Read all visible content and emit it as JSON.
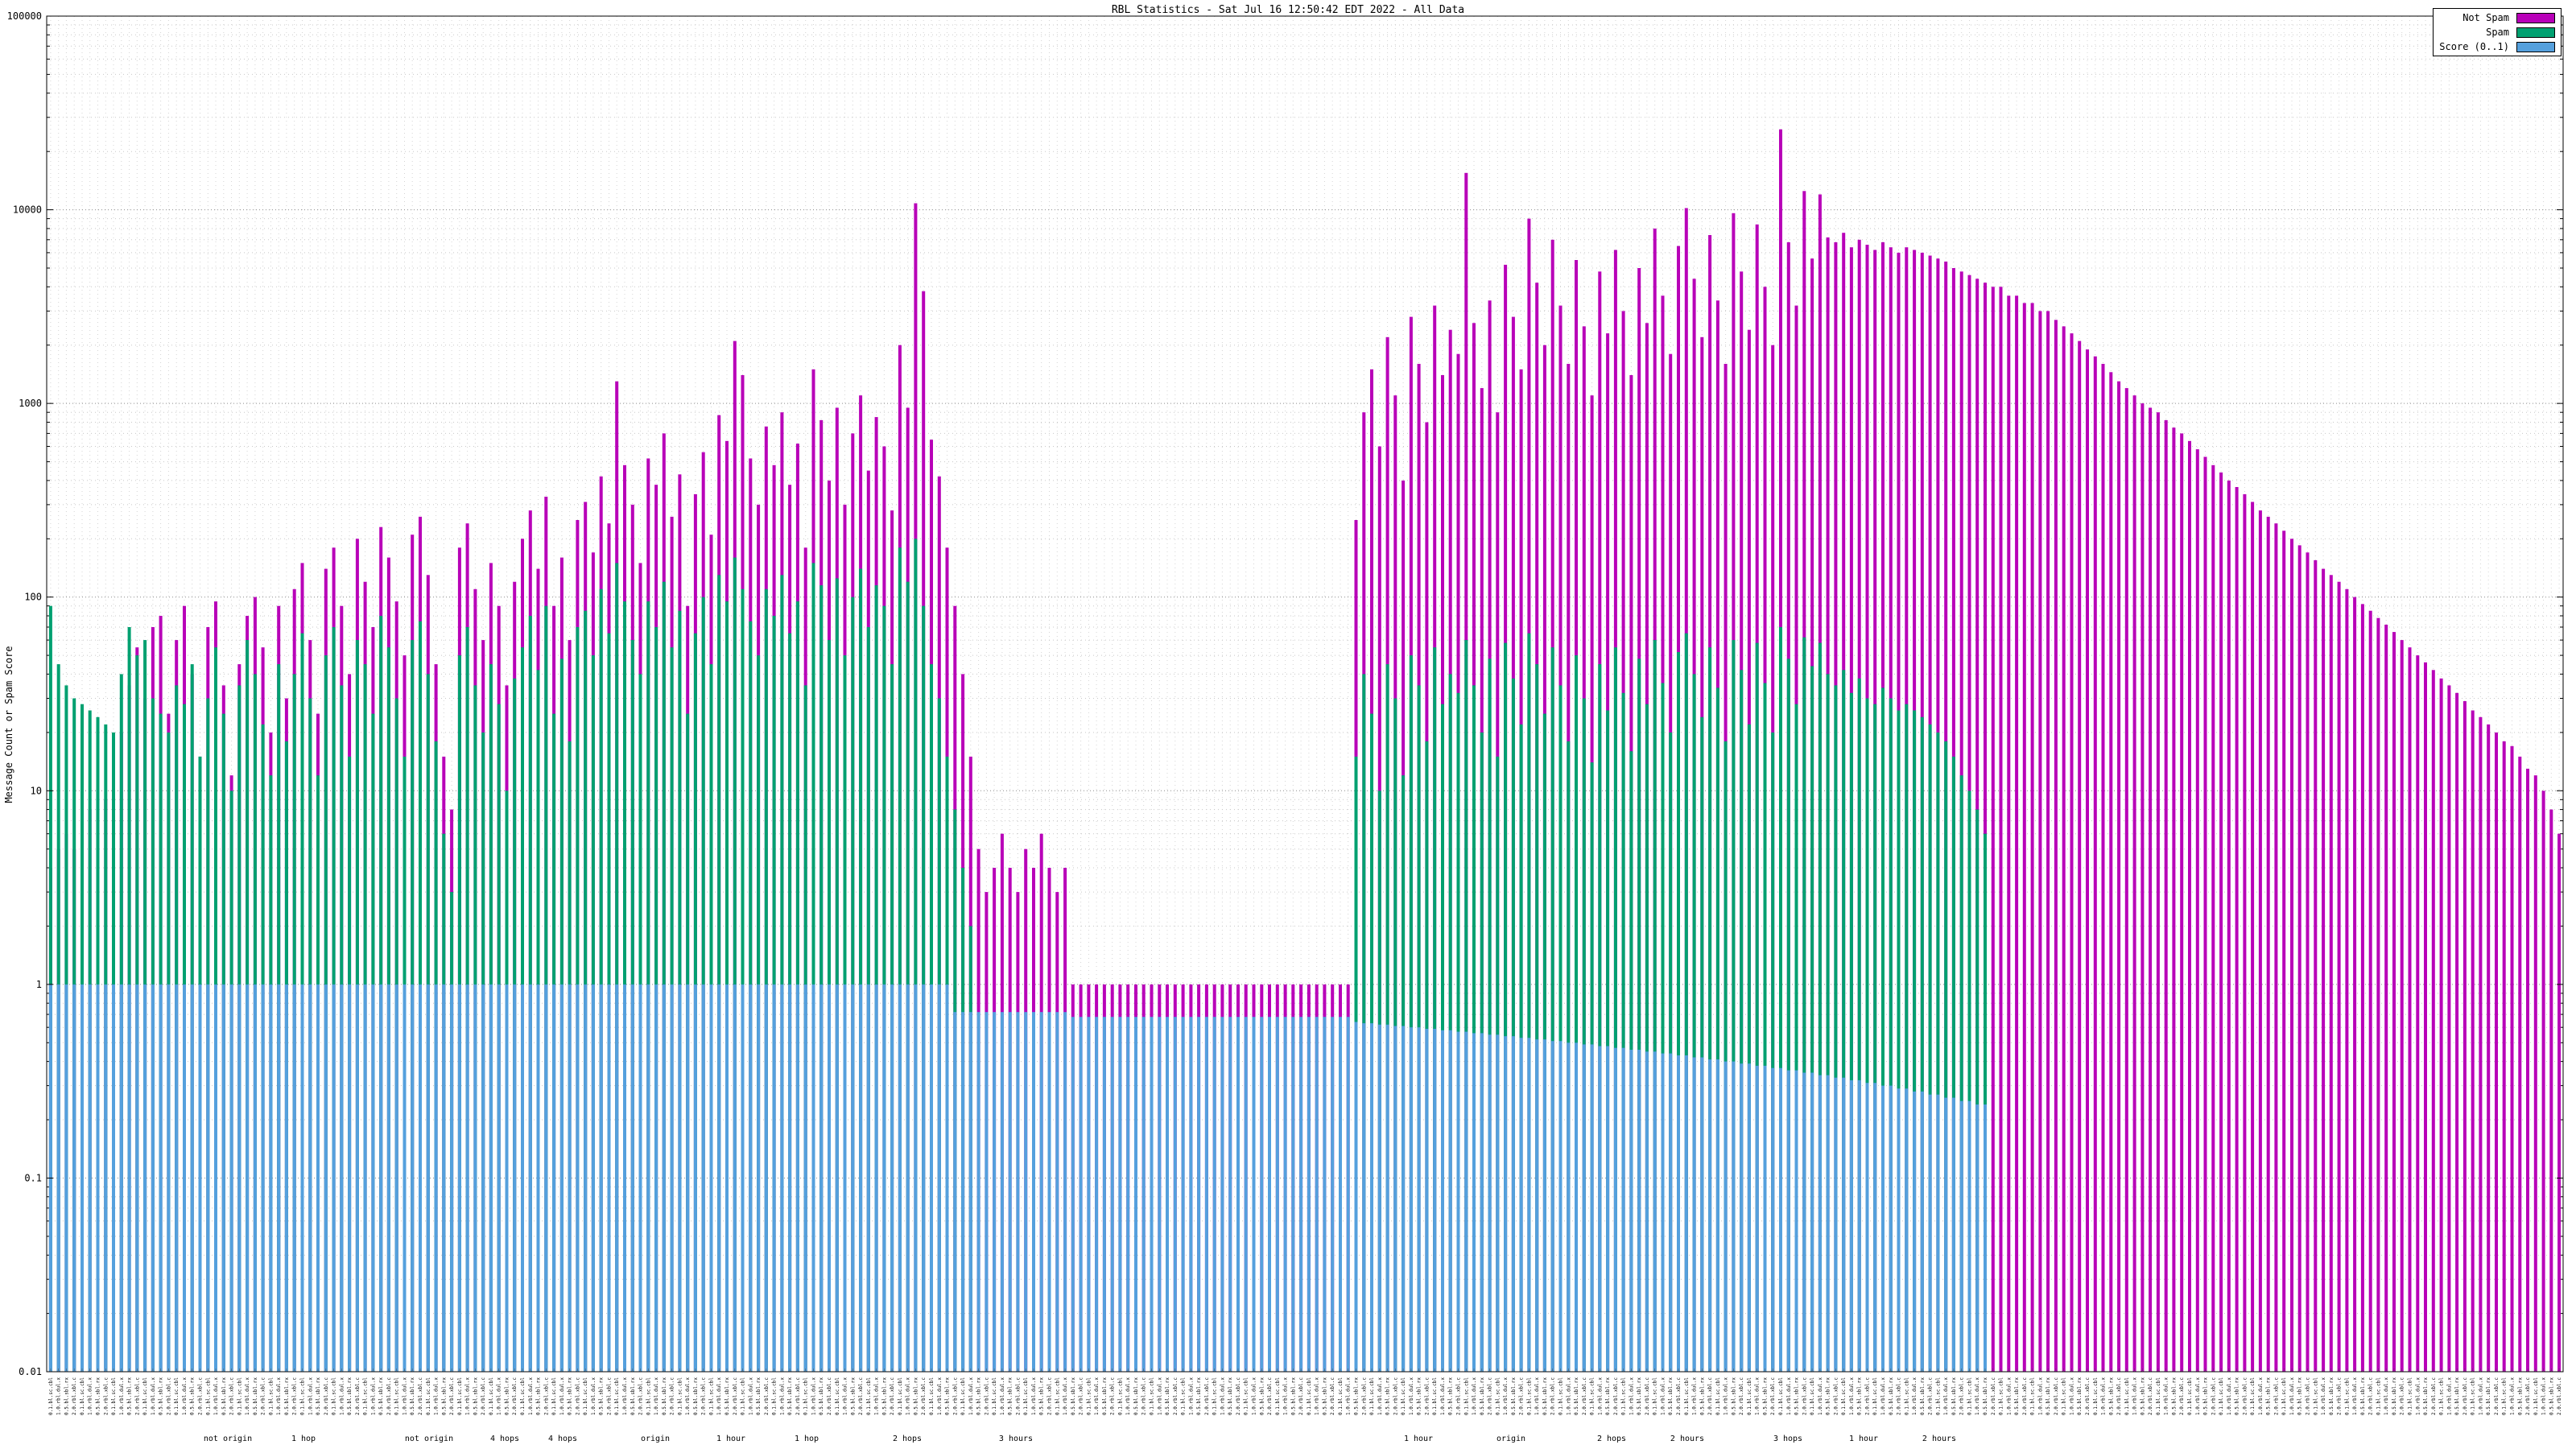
{
  "title": "RBL Statistics - Sat Jul 16 12:50:42 EDT 2022 - All Data",
  "y_axis": {
    "label": "Message Count or Spam Score",
    "scale": "log",
    "ticks": [
      "100000",
      "10000",
      "1000",
      "100",
      "10",
      "1",
      "0.1",
      "0.01"
    ]
  },
  "x_axis": {
    "note": "per-bar rule labels are rendered vertically and are illegible at source resolution",
    "tick_texts": [
      "0.1.bl.sc.cbl",
      "1.0.rbl.dul.x",
      "0.5.bl.sbl.rx",
      "2.0.rbl.xbl.c"
    ],
    "group_labels": [
      {
        "pos": 0.072,
        "text": "not origin"
      },
      {
        "pos": 0.102,
        "text": "1 hop"
      },
      {
        "pos": 0.152,
        "text": "not origin"
      },
      {
        "pos": 0.182,
        "text": "4 hops"
      },
      {
        "pos": 0.205,
        "text": "4 hops"
      },
      {
        "pos": 0.242,
        "text": "origin"
      },
      {
        "pos": 0.272,
        "text": "1 hour"
      },
      {
        "pos": 0.302,
        "text": "1 hop"
      },
      {
        "pos": 0.342,
        "text": "2 hops"
      },
      {
        "pos": 0.385,
        "text": "3 hours"
      },
      {
        "pos": 0.545,
        "text": "1 hour"
      },
      {
        "pos": 0.582,
        "text": "origin"
      },
      {
        "pos": 0.622,
        "text": "2 hops"
      },
      {
        "pos": 0.652,
        "text": "2 hours"
      },
      {
        "pos": 0.692,
        "text": "3 hops"
      },
      {
        "pos": 0.722,
        "text": "1 hour"
      },
      {
        "pos": 0.752,
        "text": "2 hours"
      }
    ]
  },
  "chart_data": {
    "type": "bar",
    "title": "RBL Statistics - Sat Jul 16 12:50:42 EDT 2022 - All Data",
    "xlabel": "",
    "ylabel": "Message Count or Spam Score",
    "ylim": [
      0.01,
      100000
    ],
    "yscale": "log",
    "grid": true,
    "legend_position": "top-right",
    "note": "approx. 320 impulse bars estimated from pixels; individual x labels illegible",
    "series": [
      {
        "name": "Not Spam",
        "color": "#b800b8",
        "values": [
          4,
          5,
          6,
          5,
          7,
          8,
          10,
          9,
          12,
          20,
          35,
          55,
          30,
          70,
          80,
          25,
          60,
          90,
          40,
          15,
          70,
          95,
          35,
          12,
          45,
          80,
          100,
          55,
          20,
          90,
          30,
          110,
          150,
          60,
          25,
          140,
          180,
          90,
          40,
          200,
          120,
          70,
          230,
          160,
          95,
          50,
          210,
          260,
          130,
          45,
          15,
          8,
          180,
          240,
          110,
          60,
          150,
          90,
          35,
          120,
          200,
          280,
          140,
          330,
          90,
          160,
          60,
          250,
          310,
          170,
          420,
          240,
          1300,
          480,
          300,
          150,
          520,
          380,
          700,
          260,
          430,
          90,
          340,
          560,
          210,
          870,
          640,
          2100,
          1400,
          520,
          300,
          760,
          480,
          900,
          380,
          620,
          180,
          1500,
          820,
          400,
          950,
          300,
          700,
          1100,
          450,
          850,
          600,
          280,
          2000,
          950,
          10800,
          3800,
          650,
          420,
          180,
          90,
          40,
          15,
          5,
          3,
          4,
          6,
          4,
          3,
          5,
          4,
          6,
          4,
          3,
          4,
          1,
          1,
          1,
          1,
          1,
          1,
          1,
          1,
          1,
          1,
          1,
          1,
          1,
          1,
          1,
          1,
          1,
          1,
          1,
          1,
          1,
          1,
          1,
          1,
          1,
          1,
          1,
          1,
          1,
          1,
          1,
          1,
          1,
          1,
          1,
          1,
          250,
          900,
          1500,
          600,
          2200,
          1100,
          400,
          2800,
          1600,
          800,
          3200,
          1400,
          2400,
          1800,
          15500,
          2600,
          1200,
          3400,
          900,
          5200,
          2800,
          1500,
          9000,
          4200,
          2000,
          7000,
          3200,
          1600,
          5500,
          2500,
          1100,
          4800,
          2300,
          6200,
          3000,
          1400,
          5000,
          2600,
          8000,
          3600,
          1800,
          6500,
          10200,
          4400,
          2200,
          7400,
          3400,
          1600,
          9600,
          4800,
          2400,
          8400,
          4000,
          2000,
          26000,
          6800,
          3200,
          12500,
          5600,
          12000,
          7200,
          6800,
          7600,
          6400,
          7000,
          6600,
          6200,
          6800,
          6400,
          6000,
          6400,
          6200,
          6000,
          5800,
          5600,
          5400,
          5000,
          4800,
          4600,
          4400,
          4200,
          4000,
          4000,
          3600,
          3600,
          3300,
          3300,
          3000,
          3000,
          2700,
          2500,
          2300,
          2100,
          1900,
          1750,
          1600,
          1450,
          1300,
          1200,
          1100,
          1000,
          950,
          900,
          820,
          750,
          700,
          640,
          580,
          530,
          480,
          440,
          400,
          370,
          340,
          310,
          280,
          260,
          240,
          220,
          200,
          185,
          170,
          155,
          140,
          130,
          120,
          110,
          100,
          92,
          85,
          78,
          72,
          66,
          60,
          55,
          50,
          46,
          42,
          38,
          35,
          32,
          29,
          26,
          24,
          22,
          20,
          18,
          17,
          15,
          13,
          12,
          10,
          8,
          6
        ]
      },
      {
        "name": "Spam",
        "color": "#00a070",
        "values": [
          90,
          45,
          35,
          30,
          28,
          26,
          24,
          22,
          20,
          40,
          70,
          50,
          60,
          30,
          25,
          20,
          35,
          28,
          45,
          15,
          30,
          55,
          25,
          10,
          35,
          60,
          40,
          22,
          12,
          45,
          18,
          40,
          65,
          30,
          12,
          50,
          70,
          35,
          15,
          60,
          45,
          25,
          80,
          55,
          30,
          15,
          60,
          75,
          40,
          18,
          6,
          3,
          50,
          70,
          35,
          20,
          45,
          28,
          10,
          38,
          55,
          80,
          42,
          90,
          25,
          48,
          18,
          70,
          85,
          50,
          110,
          65,
          150,
          95,
          60,
          40,
          95,
          70,
          120,
          55,
          85,
          25,
          65,
          100,
          45,
          130,
          95,
          160,
          110,
          75,
          50,
          110,
          80,
          130,
          65,
          95,
          35,
          150,
          115,
          60,
          125,
          50,
          100,
          140,
          70,
          115,
          90,
          45,
          180,
          120,
          200,
          90,
          45,
          30,
          15,
          8,
          4,
          2,
          0,
          0,
          0,
          0,
          0,
          0,
          0,
          0,
          0,
          0,
          0,
          0,
          0,
          0,
          0,
          0,
          0,
          0,
          0,
          0,
          0,
          0,
          0,
          0,
          0,
          0,
          0,
          0,
          0,
          0,
          0,
          0,
          0,
          0,
          0,
          0,
          0,
          0,
          0,
          0,
          0,
          0,
          0,
          0,
          0,
          0,
          0,
          0,
          15,
          40,
          25,
          10,
          45,
          30,
          12,
          50,
          35,
          18,
          55,
          28,
          40,
          32,
          60,
          35,
          20,
          48,
          15,
          58,
          38,
          22,
          65,
          45,
          25,
          55,
          35,
          18,
          50,
          30,
          14,
          45,
          26,
          55,
          32,
          16,
          48,
          28,
          60,
          36,
          20,
          52,
          65,
          40,
          24,
          55,
          34,
          18,
          60,
          42,
          22,
          58,
          36,
          20,
          70,
          48,
          28,
          62,
          44,
          58,
          40,
          35,
          42,
          32,
          38,
          30,
          28,
          34,
          30,
          26,
          28,
          26,
          24,
          22,
          20,
          18,
          15,
          12,
          10,
          8,
          6,
          0,
          0,
          0,
          0,
          0,
          0,
          0,
          0,
          0,
          0,
          0,
          0,
          0,
          0,
          0,
          0,
          0,
          0,
          0,
          0,
          0,
          0,
          0,
          0,
          0,
          0,
          0,
          0,
          0,
          0,
          0,
          0,
          0,
          0,
          0,
          0,
          0,
          0,
          0,
          0,
          0,
          0,
          0,
          0,
          0,
          0,
          0,
          0,
          0,
          0,
          0,
          0,
          0,
          0,
          0,
          0,
          0,
          0,
          0,
          0,
          0,
          0,
          0,
          0,
          0,
          0,
          0,
          0,
          0,
          0,
          0,
          0,
          0
        ]
      },
      {
        "name": "Score (0..1)",
        "color": "#55a0dd",
        "values": [
          1,
          1,
          1,
          1,
          1,
          1,
          1,
          1,
          1,
          1,
          1,
          1,
          1,
          1,
          1,
          1,
          1,
          1,
          1,
          1,
          1,
          1,
          1,
          1,
          1,
          1,
          1,
          1,
          1,
          1,
          1,
          1,
          1,
          1,
          1,
          1,
          1,
          1,
          1,
          1,
          1,
          1,
          1,
          1,
          1,
          1,
          1,
          1,
          1,
          1,
          1,
          1,
          1,
          1,
          1,
          1,
          1,
          1,
          1,
          1,
          1,
          1,
          1,
          1,
          1,
          1,
          1,
          1,
          1,
          1,
          1,
          1,
          1,
          1,
          1,
          1,
          1,
          1,
          1,
          1,
          1,
          1,
          1,
          1,
          1,
          1,
          1,
          1,
          1,
          1,
          1,
          1,
          1,
          1,
          1,
          1,
          1,
          1,
          1,
          1,
          1,
          1,
          1,
          1,
          1,
          1,
          1,
          1,
          1,
          1,
          1,
          1,
          1,
          1,
          1,
          0.72,
          0.72,
          0.72,
          0.72,
          0.72,
          0.72,
          0.72,
          0.72,
          0.72,
          0.72,
          0.72,
          0.72,
          0.72,
          0.72,
          0.72,
          0.68,
          0.68,
          0.68,
          0.68,
          0.68,
          0.68,
          0.68,
          0.68,
          0.68,
          0.68,
          0.68,
          0.68,
          0.68,
          0.68,
          0.68,
          0.68,
          0.68,
          0.68,
          0.68,
          0.68,
          0.68,
          0.68,
          0.68,
          0.68,
          0.68,
          0.68,
          0.68,
          0.68,
          0.68,
          0.68,
          0.68,
          0.68,
          0.68,
          0.68,
          0.68,
          0.68,
          0.64,
          0.63,
          0.63,
          0.62,
          0.62,
          0.61,
          0.61,
          0.6,
          0.6,
          0.59,
          0.59,
          0.58,
          0.58,
          0.57,
          0.57,
          0.56,
          0.56,
          0.55,
          0.55,
          0.54,
          0.54,
          0.53,
          0.53,
          0.52,
          0.52,
          0.51,
          0.51,
          0.5,
          0.5,
          0.49,
          0.49,
          0.48,
          0.48,
          0.47,
          0.47,
          0.46,
          0.46,
          0.45,
          0.45,
          0.44,
          0.44,
          0.43,
          0.43,
          0.42,
          0.42,
          0.41,
          0.41,
          0.4,
          0.4,
          0.39,
          0.39,
          0.38,
          0.38,
          0.37,
          0.37,
          0.36,
          0.36,
          0.35,
          0.35,
          0.34,
          0.34,
          0.33,
          0.33,
          0.32,
          0.32,
          0.31,
          0.31,
          0.3,
          0.3,
          0.29,
          0.29,
          0.28,
          0.28,
          0.27,
          0.27,
          0.26,
          0.26,
          0.25,
          0.25,
          0.24,
          0.24,
          0,
          0,
          0,
          0,
          0,
          0,
          0,
          0,
          0,
          0,
          0,
          0,
          0,
          0,
          0,
          0,
          0,
          0,
          0,
          0,
          0,
          0,
          0,
          0,
          0,
          0,
          0,
          0,
          0,
          0,
          0,
          0,
          0,
          0,
          0,
          0,
          0,
          0,
          0,
          0,
          0,
          0,
          0,
          0,
          0,
          0,
          0,
          0,
          0,
          0,
          0,
          0,
          0,
          0,
          0,
          0,
          0,
          0,
          0,
          0,
          0,
          0,
          0,
          0,
          0,
          0,
          0,
          0,
          0,
          0,
          0,
          0,
          0
        ]
      }
    ]
  }
}
